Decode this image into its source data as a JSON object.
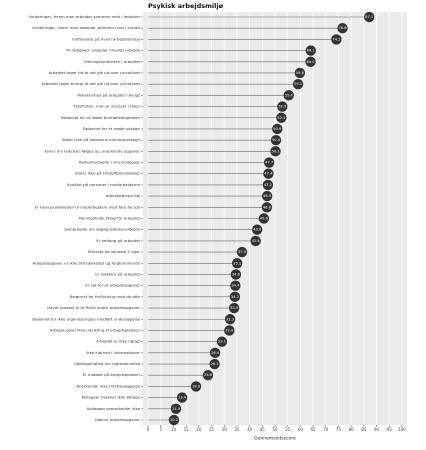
{
  "chart_data": {
    "type": "lollipop",
    "title": "Psykisk arbejdsmiljø",
    "x_label": "Gennemsnitsscore",
    "categories": [
      "Vurderinger, hvem man arbejder sammen med i ledelsen",
      "Vurderinger, hvem man arbejder sammen med i socialt",
      "Indflydelse på hvem arbejdstempo",
      "Til rådighed: arbejdet rimeligt arbejde",
      "Meningsfuldheden i arbejdet",
      "Arbejdet tager tid at det gik ud over privatlivet",
      "Arbejdet tager energi at det gik ud over privatlivet",
      "Rolleklarhed på arbejdet i øvrigt",
      "Tidsfristen, man er stresset i tiden",
      "Belønnet for at møde tilstrækkeligheden",
      "Belønnet for at møde udsagn",
      "Stoler ikke på ledelsens meningsudsagn",
      "Ellers om ledelsen følges op, anerkende opgaver",
      "Rodsamarbejde i sine kollegaer",
      "Stoler ikke på chefgiftsbudskaber",
      "Kvalitet på personer i medarbejderne",
      "Arbejdstempo høj",
      "Er hensynsløsheden til medarbejdere med fare for job",
      "Meningsfulde tiltag for arbejdet",
      "Samarbejde om daglig ledelsesarbejde",
      "Er omfang på arbejdet",
      "Stresset de seneste 2 uger",
      "Arbejdsopgaver er ikke tilstrækkeligt og forglemmende",
      "Er rolleklar på arbejdet",
      "Er sat for at arbejdsopgaver",
      "Belønnet for forflytning med de ofte",
      "Havet presset til at flytte andre arbejdsopgaver",
      "Belønnet for ikke organiseringen medført undersøgelse",
      "Arbejde giver ikke udvikling af arbejdspladsen",
      "Arbejdet er ikke rigtigt",
      "Ikke klarhed i informationer",
      "Ubehagelighed om rygtedannelse",
      "Er mobbet på arbejdspladsen",
      "Anerkender ikke tilrettelæggelse",
      "Kollegaer trækker ikke tilbage",
      "Kollegaer samarbejder ikke",
      "Ulønne arbejdsopgaver"
    ],
    "values": [
      87.1,
      76.6,
      74.2,
      64.1,
      64.0,
      59.8,
      59.1,
      55.4,
      52.9,
      52.5,
      50.9,
      50.4,
      50.2,
      47.7,
      47.4,
      47.2,
      46.9,
      46.8,
      45.6,
      43.0,
      42.4,
      37.0,
      35.1,
      34.6,
      34.4,
      34.2,
      33.9,
      32.3,
      32.0,
      29.1,
      26.4,
      26.2,
      23.6,
      18.9,
      13.4,
      11.0,
      10.2
    ],
    "value_labels": [
      "87.1",
      "76.6",
      "74.2",
      "64.1",
      "64.0",
      "59.8",
      "59.1",
      "55.4",
      "52.9",
      "52.5",
      "50.9",
      "50.4",
      "50.2",
      "47.7",
      "47.4",
      "47.2",
      "46.9",
      "46.8",
      "45.6",
      "43.0",
      "42.4",
      "37.0",
      "35.1",
      "34.6",
      "34.4",
      "34.2",
      "33.9",
      "32.3",
      "32.0",
      "29.1",
      "26.4",
      "26.2",
      "23.6",
      "18.9",
      "13.4",
      "11.0",
      "10.2"
    ],
    "color": "#333333",
    "xlim": [
      -2,
      102
    ],
    "xticks": [
      0,
      5,
      10,
      15,
      20,
      25,
      30,
      35,
      40,
      45,
      50,
      55,
      60,
      65,
      70,
      75,
      80,
      85,
      90,
      95,
      100
    ],
    "grid": true
  }
}
